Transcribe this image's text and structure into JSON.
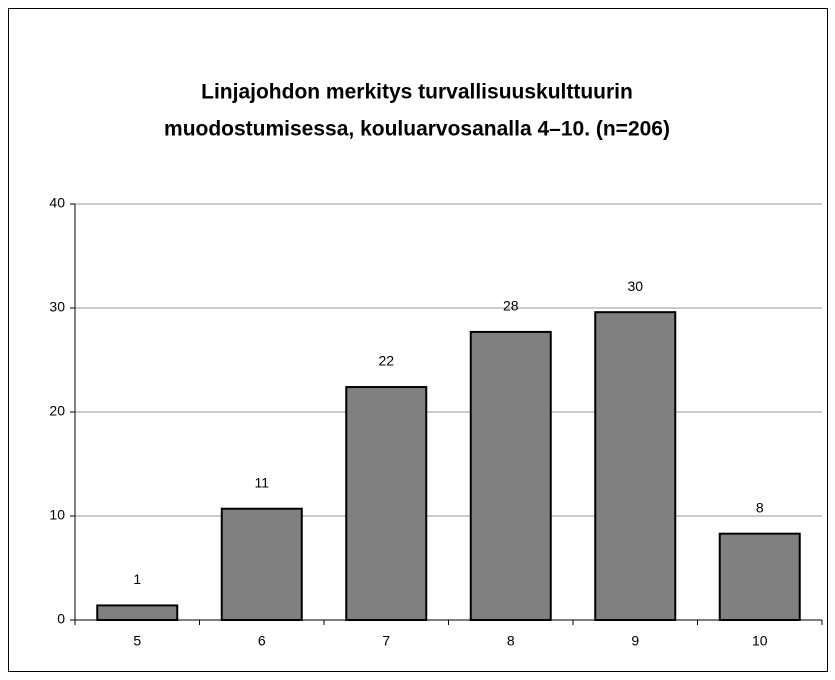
{
  "chart_data": {
    "type": "bar",
    "title": [
      "Linjajohdon merkitys turvallisuuskulttuurin",
      "muodostumisessa, kouluarvosanalla 4–10. (n=206)"
    ],
    "categories": [
      "5",
      "6",
      "7",
      "8",
      "9",
      "10"
    ],
    "values": [
      1.4,
      10.7,
      22.4,
      27.7,
      29.6,
      8.3
    ],
    "value_labels": [
      "1",
      "11",
      "22",
      "28",
      "30",
      "8"
    ],
    "color": "#808080",
    "ylim": [
      0,
      40
    ],
    "yticks": [
      0,
      10,
      20,
      30,
      40
    ],
    "grid": true
  }
}
